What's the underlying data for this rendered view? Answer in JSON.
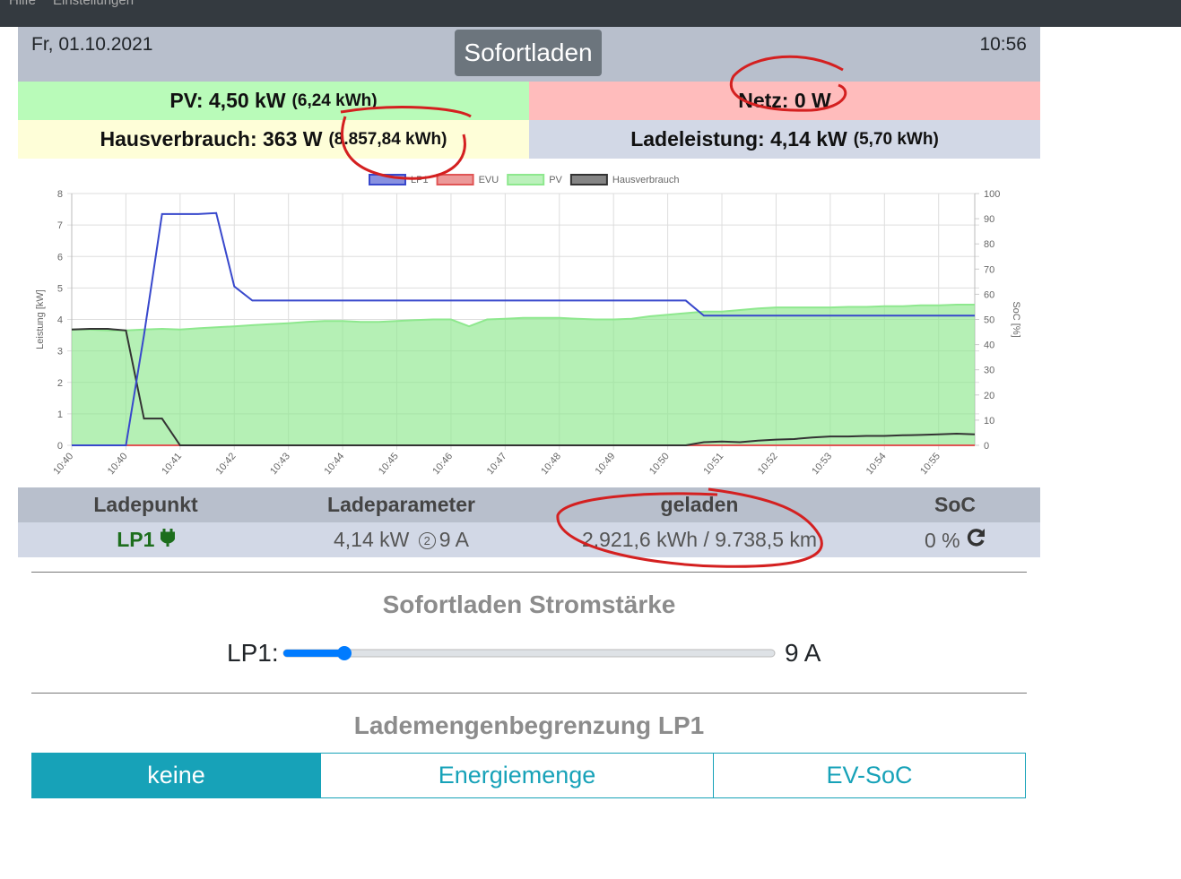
{
  "menu": [
    "Hilfe",
    "Einstellungen"
  ],
  "header": {
    "date": "Fr, 01.10.2021",
    "mode": "Sofortladen",
    "time": "10:56"
  },
  "tiles": {
    "pv": "PV: 4,50 kW",
    "pv_energy": "(6,24 kWh)",
    "netz": "Netz: 0 W",
    "haus": "Hausverbrauch: 363 W",
    "haus_energy": "(8.857,84 kWh)",
    "lade": "Ladeleistung: 4,14 kW",
    "lade_energy": "(5,70 kWh)"
  },
  "chart_data": {
    "type": "line",
    "ylabel": "Leistung [kW]",
    "y2label": "SoC [%]",
    "categories": [
      "10:40",
      null,
      null,
      "10:40",
      null,
      null,
      "10:41",
      null,
      null,
      "10:42",
      null,
      null,
      "10:43",
      null,
      null,
      "10:44",
      null,
      null,
      "10:45",
      null,
      null,
      "10:46",
      null,
      null,
      "10:47",
      null,
      null,
      "10:48",
      null,
      null,
      "10:49",
      null,
      null,
      "10:50",
      null,
      null,
      "10:51",
      null,
      null,
      "10:52",
      null,
      null,
      "10:53",
      null,
      null,
      "10:54",
      null,
      null,
      "10:55",
      null,
      null
    ],
    "series": [
      {
        "name": "LP1",
        "color": "#3848cc",
        "values": [
          0,
          0,
          0,
          0,
          3.5,
          7.35,
          7.35,
          7.35,
          7.38,
          5.05,
          4.6,
          4.6,
          4.6,
          4.6,
          4.6,
          4.6,
          4.6,
          4.6,
          4.6,
          4.6,
          4.6,
          4.6,
          4.6,
          4.6,
          4.6,
          4.6,
          4.6,
          4.6,
          4.6,
          4.6,
          4.6,
          4.6,
          4.6,
          4.6,
          4.6,
          4.12,
          4.12,
          4.12,
          4.12,
          4.12,
          4.12,
          4.12,
          4.12,
          4.12,
          4.12,
          4.12,
          4.12,
          4.12,
          4.12,
          4.12,
          4.12
        ]
      },
      {
        "name": "EVU",
        "color": "#e05555",
        "values": [
          0,
          0,
          0,
          0,
          0,
          0,
          0,
          0,
          0,
          0,
          0,
          0,
          0,
          0,
          0,
          0,
          0,
          0,
          0,
          0,
          0,
          0,
          0,
          0,
          0,
          0,
          0,
          0,
          0,
          0,
          0,
          0,
          0,
          0,
          0,
          0,
          0,
          0,
          0,
          0,
          0,
          0,
          0,
          0,
          0,
          0,
          0,
          0,
          0,
          0,
          0
        ]
      },
      {
        "name": "PV",
        "color": "#8ee88e",
        "area": true,
        "values": [
          3.68,
          3.68,
          3.65,
          3.65,
          3.68,
          3.7,
          3.68,
          3.72,
          3.75,
          3.78,
          3.82,
          3.85,
          3.88,
          3.92,
          3.95,
          3.95,
          3.92,
          3.92,
          3.95,
          3.98,
          4.0,
          4.0,
          3.78,
          4.0,
          4.02,
          4.05,
          4.05,
          4.05,
          4.02,
          4.0,
          4.0,
          4.02,
          4.1,
          4.15,
          4.2,
          4.25,
          4.25,
          4.3,
          4.35,
          4.38,
          4.38,
          4.38,
          4.38,
          4.4,
          4.4,
          4.42,
          4.42,
          4.45,
          4.45,
          4.47,
          4.47
        ]
      },
      {
        "name": "Hausverbrauch",
        "color": "#333333",
        "values": [
          3.68,
          3.7,
          3.7,
          3.65,
          0.85,
          0.85,
          0,
          0,
          0,
          0,
          0,
          0,
          0,
          0,
          0,
          0,
          0,
          0,
          0,
          0,
          0,
          0,
          0,
          0,
          0,
          0,
          0,
          0,
          0,
          0,
          0,
          0,
          0,
          0,
          0,
          0.1,
          0.12,
          0.1,
          0.15,
          0.18,
          0.2,
          0.25,
          0.28,
          0.28,
          0.3,
          0.3,
          0.32,
          0.33,
          0.35,
          0.37,
          0.35
        ]
      }
    ],
    "ylim": [
      0,
      8
    ],
    "yticks": [
      0,
      1,
      2,
      3,
      4,
      5,
      6,
      7,
      8
    ],
    "y2lim": [
      0,
      100
    ],
    "y2ticks": [
      0,
      10,
      20,
      30,
      40,
      50,
      60,
      70,
      80,
      90,
      100
    ],
    "grid": true,
    "legend": "top"
  },
  "table": {
    "headers": [
      "Ladepunkt",
      "Ladeparameter",
      "geladen",
      "SoC"
    ],
    "row": {
      "ladepunkt": "LP1",
      "power": "4,14 kW",
      "phases": "2",
      "current": "9 A",
      "geladen": "2.921,6 kWh / 9.738,5 km",
      "soc": "0 %"
    }
  },
  "sofortladen": {
    "title": "Sofortladen Stromstärke",
    "label": "LP1:",
    "value": "9 A"
  },
  "limit": {
    "title": "Lademengenbegrenzung LP1",
    "options": [
      "keine",
      "Energiemenge",
      "EV-SoC"
    ]
  }
}
